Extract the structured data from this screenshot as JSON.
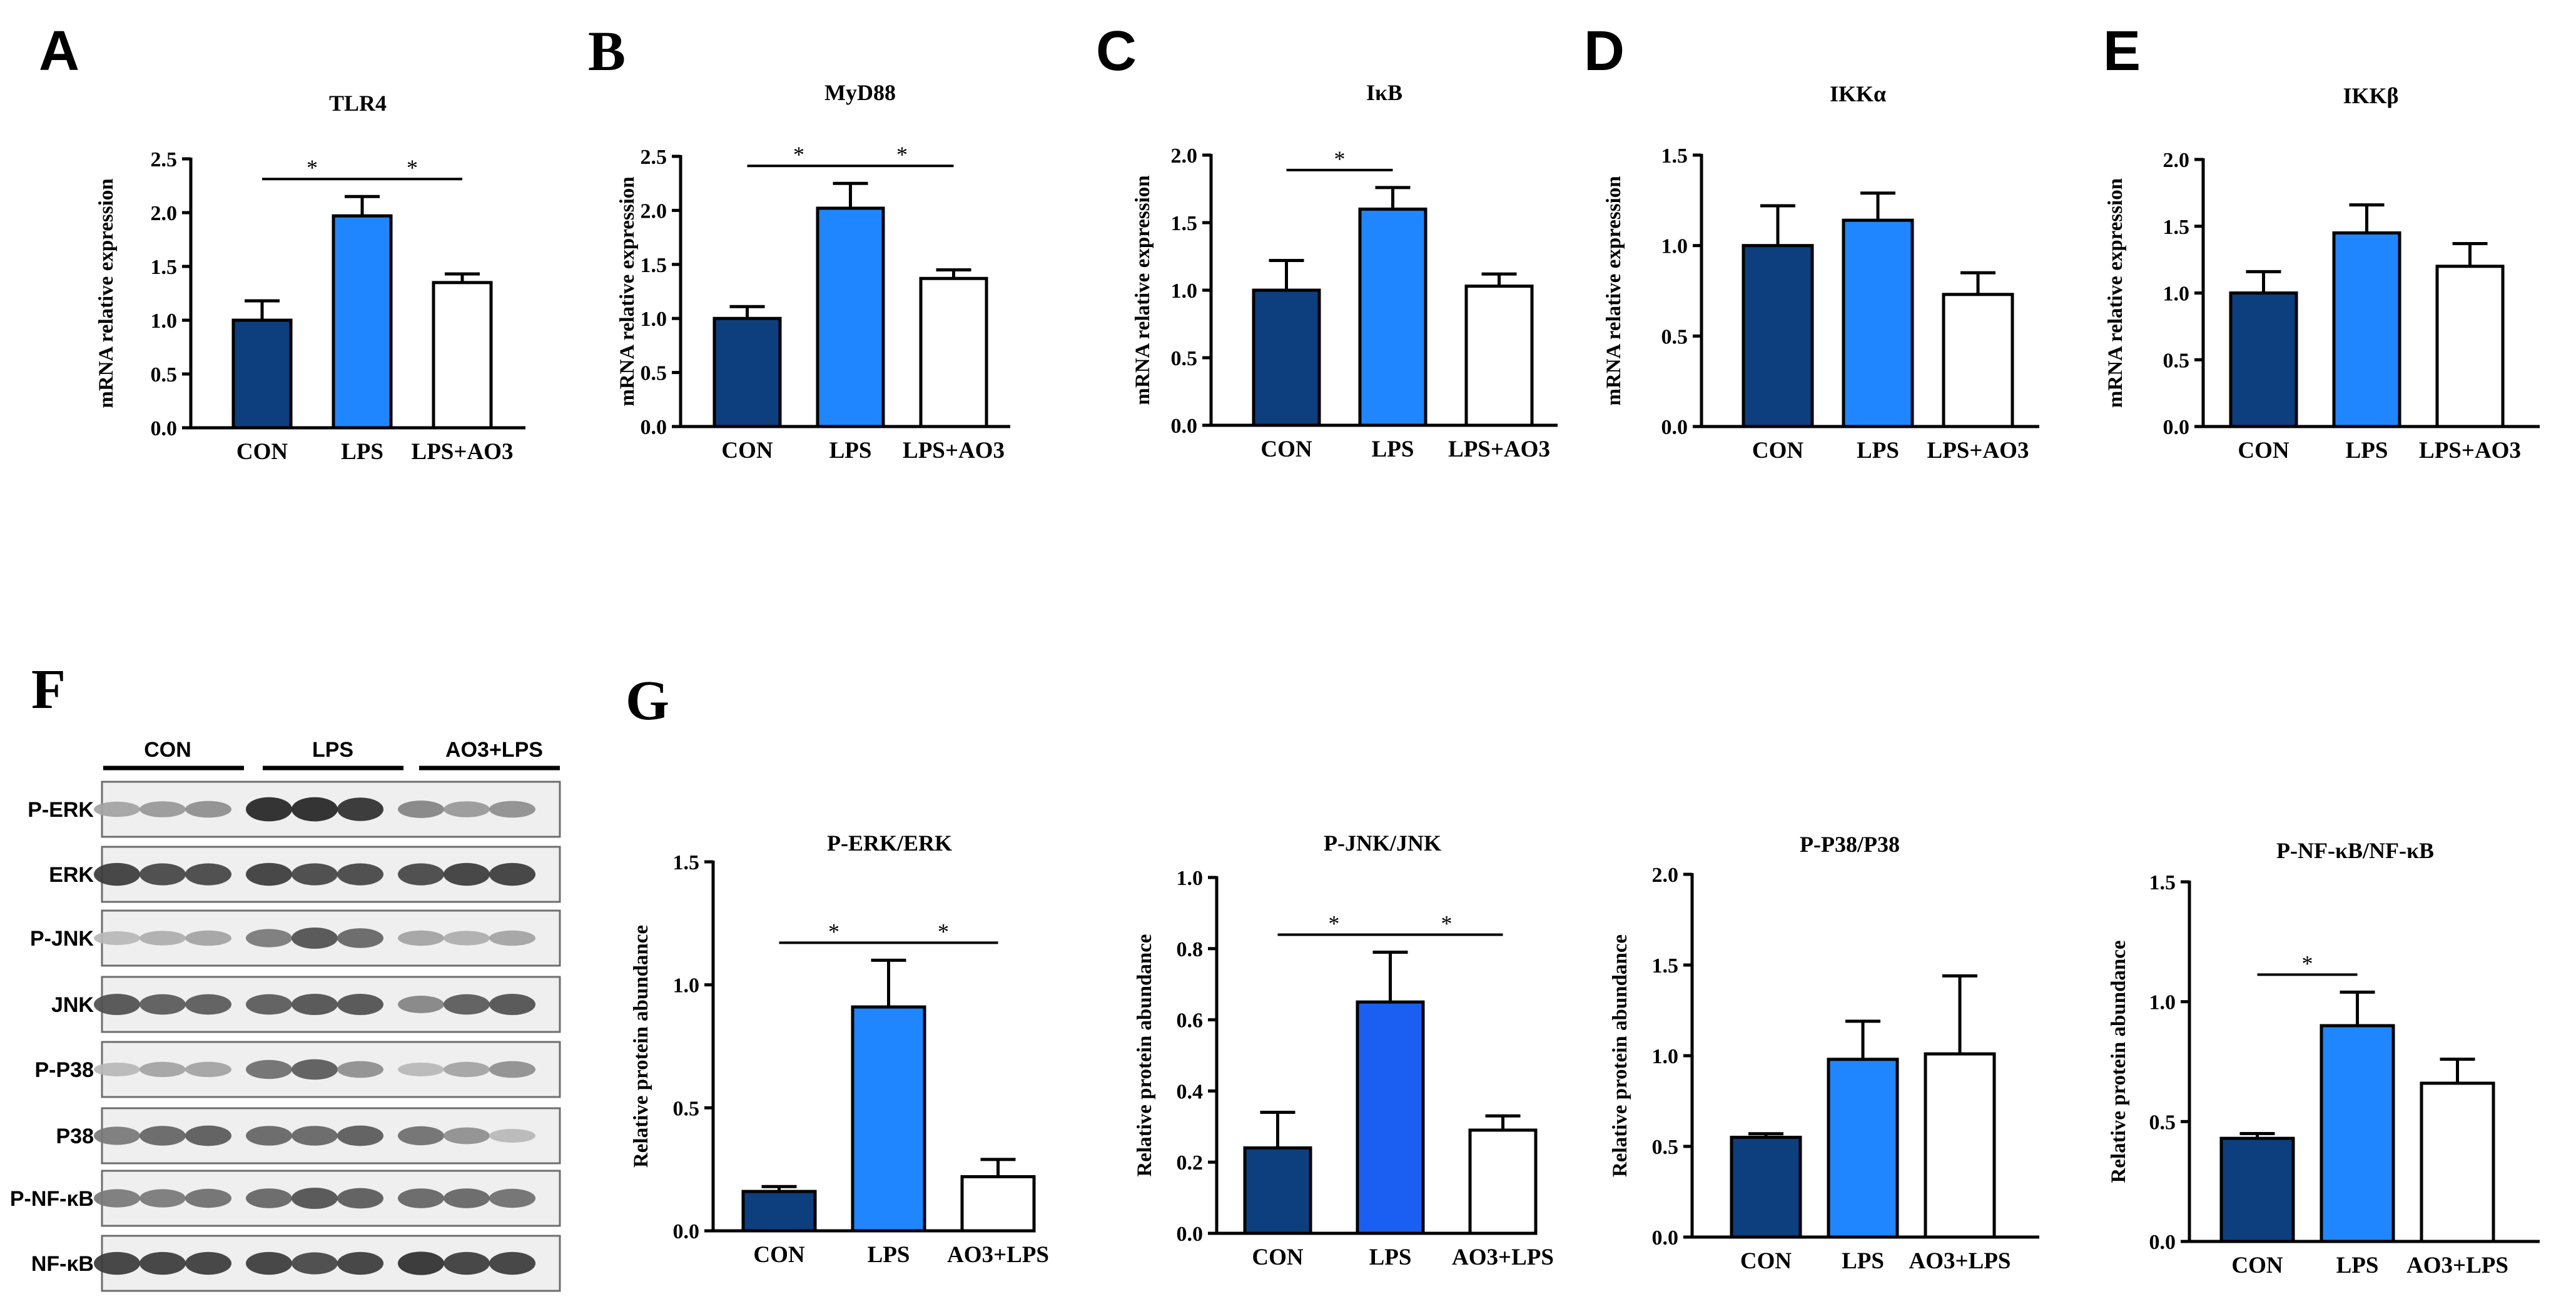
{
  "panel_letters": [
    "A",
    "B",
    "C",
    "D",
    "E",
    "F",
    "G"
  ],
  "colors": {
    "con": "#0d3f7f",
    "lps": "#1f86ff",
    "lps_jnk": "#1a5ff2",
    "ao3": "#ffffff",
    "axis": "#000000"
  },
  "blot": {
    "groups": [
      "CON",
      "LPS",
      "AO3+LPS"
    ],
    "rows": [
      {
        "label": "P-ERK",
        "b": [
          0.35,
          0.4,
          0.45,
          0.95,
          0.95,
          0.9,
          0.5,
          0.4,
          0.45
        ]
      },
      {
        "label": "ERK",
        "b": [
          0.85,
          0.8,
          0.8,
          0.85,
          0.8,
          0.8,
          0.8,
          0.85,
          0.85
        ]
      },
      {
        "label": "P-JNK",
        "b": [
          0.25,
          0.3,
          0.35,
          0.55,
          0.75,
          0.65,
          0.35,
          0.3,
          0.35
        ]
      },
      {
        "label": "JNK",
        "b": [
          0.75,
          0.7,
          0.7,
          0.7,
          0.75,
          0.75,
          0.5,
          0.7,
          0.75
        ]
      },
      {
        "label": "P-P38",
        "b": [
          0.25,
          0.35,
          0.35,
          0.6,
          0.7,
          0.45,
          0.25,
          0.35,
          0.45
        ]
      },
      {
        "label": "P38",
        "b": [
          0.55,
          0.65,
          0.7,
          0.65,
          0.65,
          0.7,
          0.6,
          0.45,
          0.25
        ]
      },
      {
        "label": "P-NF-κB",
        "b": [
          0.55,
          0.55,
          0.6,
          0.65,
          0.75,
          0.7,
          0.65,
          0.65,
          0.6
        ]
      },
      {
        "label": "NF-κB",
        "b": [
          0.85,
          0.85,
          0.85,
          0.85,
          0.8,
          0.85,
          0.9,
          0.85,
          0.85
        ]
      }
    ]
  },
  "chart_data": [
    {
      "id": "A",
      "type": "bar",
      "title": "TLR4",
      "ylabel": "mRNA relative expression",
      "categories": [
        "CON",
        "LPS",
        "LPS+AO3"
      ],
      "values": [
        1.0,
        1.97,
        1.35
      ],
      "errors": [
        0.18,
        0.18,
        0.08
      ],
      "ylim": [
        0,
        2.5
      ],
      "yticks": [
        "0.0",
        "0.5",
        "1.0",
        "1.5",
        "2.0",
        "2.5"
      ],
      "significance": [
        {
          "from": 0,
          "to": 1,
          "label": "*"
        },
        {
          "from": 1,
          "to": 2,
          "label": "*"
        }
      ]
    },
    {
      "id": "B",
      "type": "bar",
      "title": "MyD88",
      "ylabel": "mRNA relative expression",
      "categories": [
        "CON",
        "LPS",
        "LPS+AO3"
      ],
      "values": [
        1.0,
        2.02,
        1.37
      ],
      "errors": [
        0.11,
        0.23,
        0.08
      ],
      "ylim": [
        0,
        2.5
      ],
      "yticks": [
        "0.0",
        "0.5",
        "1.0",
        "1.5",
        "2.0",
        "2.5"
      ],
      "significance": [
        {
          "from": 0,
          "to": 1,
          "label": "*"
        },
        {
          "from": 1,
          "to": 2,
          "label": "*"
        }
      ]
    },
    {
      "id": "C",
      "type": "bar",
      "title": "IκB",
      "ylabel": "mRNA relative expression",
      "categories": [
        "CON",
        "LPS",
        "LPS+AO3"
      ],
      "values": [
        1.0,
        1.6,
        1.03
      ],
      "errors": [
        0.22,
        0.16,
        0.09
      ],
      "ylim": [
        0,
        2.0
      ],
      "yticks": [
        "0.0",
        "0.5",
        "1.0",
        "1.5",
        "2.0"
      ],
      "significance": [
        {
          "from": 0,
          "to": 1,
          "label": "*"
        }
      ]
    },
    {
      "id": "D",
      "type": "bar",
      "title": "IKKα",
      "ylabel": "mRNA relative expression",
      "categories": [
        "CON",
        "LPS",
        "LPS+AO3"
      ],
      "values": [
        1.0,
        1.14,
        0.73
      ],
      "errors": [
        0.22,
        0.15,
        0.12
      ],
      "ylim": [
        0,
        1.5
      ],
      "yticks": [
        "0.0",
        "0.5",
        "1.0",
        "1.5"
      ],
      "significance": []
    },
    {
      "id": "E",
      "type": "bar",
      "title": "IKKβ",
      "ylabel": "mRNA relative expression",
      "categories": [
        "CON",
        "LPS",
        "LPS+AO3"
      ],
      "values": [
        1.0,
        1.45,
        1.2
      ],
      "errors": [
        0.16,
        0.21,
        0.17
      ],
      "ylim": [
        0,
        2.0
      ],
      "yticks": [
        "0.0",
        "0.5",
        "1.0",
        "1.5",
        "2.0"
      ],
      "significance": []
    },
    {
      "id": "G1",
      "type": "bar",
      "title": "P-ERK/ERK",
      "ylabel": "Relative protein abundance",
      "categories": [
        "CON",
        "LPS",
        "AO3+LPS"
      ],
      "values": [
        0.16,
        0.91,
        0.22
      ],
      "errors": [
        0.02,
        0.19,
        0.07
      ],
      "ylim": [
        0,
        1.5
      ],
      "yticks": [
        "0.0",
        "0.5",
        "1.0",
        "1.5"
      ],
      "significance": [
        {
          "from": 0,
          "to": 1,
          "label": "*"
        },
        {
          "from": 1,
          "to": 2,
          "label": "*"
        }
      ]
    },
    {
      "id": "G2",
      "type": "bar",
      "title": "P-JNK/JNK",
      "ylabel": "Relative protein abundance",
      "categories": [
        "CON",
        "LPS",
        "AO3+LPS"
      ],
      "values": [
        0.24,
        0.65,
        0.29
      ],
      "errors": [
        0.1,
        0.14,
        0.04
      ],
      "ylim": [
        0,
        1.0
      ],
      "yticks": [
        "0.0",
        "0.2",
        "0.4",
        "0.6",
        "0.8",
        "1.0"
      ],
      "significance": [
        {
          "from": 0,
          "to": 1,
          "label": "*"
        },
        {
          "from": 1,
          "to": 2,
          "label": "*"
        }
      ]
    },
    {
      "id": "G3",
      "type": "bar",
      "title": "P-P38/P38",
      "ylabel": "Relative protein abundance",
      "categories": [
        "CON",
        "LPS",
        "AO3+LPS"
      ],
      "values": [
        0.55,
        0.98,
        1.01
      ],
      "errors": [
        0.02,
        0.21,
        0.43
      ],
      "ylim": [
        0,
        2.0
      ],
      "yticks": [
        "0.0",
        "0.5",
        "1.0",
        "1.5",
        "2.0"
      ],
      "significance": []
    },
    {
      "id": "G4",
      "type": "bar",
      "title": "P-NF-κB/NF-κB",
      "ylabel": "Relative protein abundance",
      "categories": [
        "CON",
        "LPS",
        "AO3+LPS"
      ],
      "values": [
        0.43,
        0.9,
        0.66
      ],
      "errors": [
        0.02,
        0.14,
        0.1
      ],
      "ylim": [
        0,
        1.5
      ],
      "yticks": [
        "0.0",
        "0.5",
        "1.0",
        "1.5"
      ],
      "significance": [
        {
          "from": 0,
          "to": 1,
          "label": "*"
        }
      ]
    }
  ]
}
